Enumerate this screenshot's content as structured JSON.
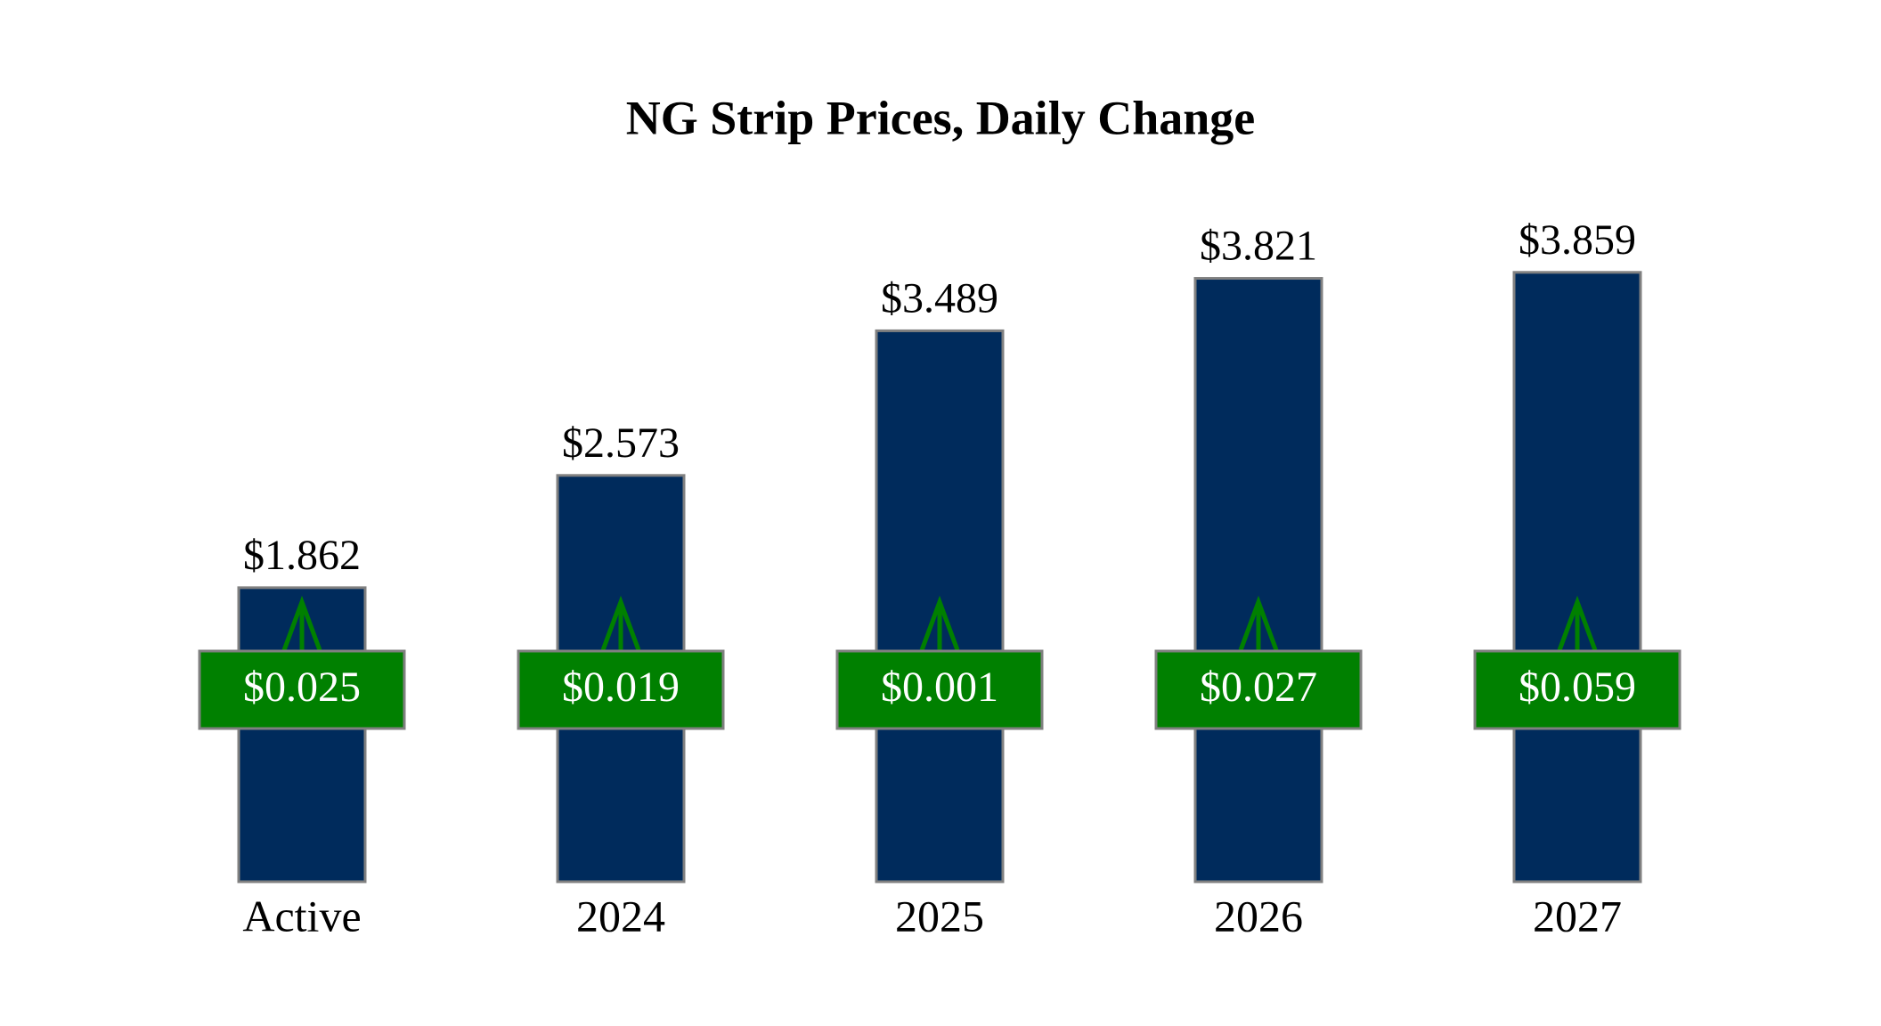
{
  "chart_data": {
    "type": "bar",
    "title": "NG Strip Prices, Daily Change",
    "categories": [
      "Active",
      "2024",
      "2025",
      "2026",
      "2027"
    ],
    "values": [
      1.862,
      2.573,
      3.489,
      3.821,
      3.859
    ],
    "value_labels": [
      "$1.862",
      "$2.573",
      "$3.489",
      "$3.821",
      "$3.859"
    ],
    "changes": [
      0.025,
      0.019,
      0.001,
      0.027,
      0.059
    ],
    "change_labels": [
      "$0.025",
      "$0.019",
      "$0.001",
      "$0.027",
      "$0.059"
    ],
    "color": "#002b5c",
    "change_color": "#008000"
  }
}
